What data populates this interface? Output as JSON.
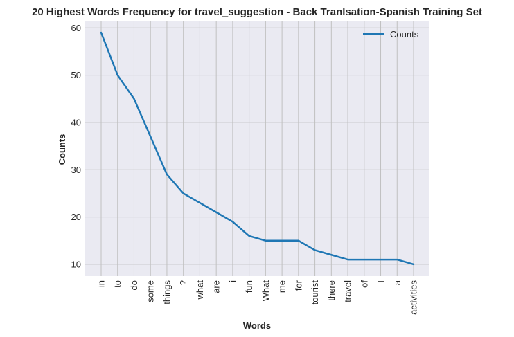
{
  "chart_data": {
    "type": "line",
    "title": "20 Highest Words Frequency for travel_suggestion - Back Tranlsation-Spanish Training Set",
    "xlabel": "Words",
    "ylabel": "Counts",
    "categories": [
      "in",
      "to",
      "do",
      "some",
      "things",
      "?",
      "what",
      "are",
      "i",
      "fun",
      "What",
      "me",
      "for",
      "tourist",
      "there",
      "travel",
      "of",
      "I",
      "a",
      "activities"
    ],
    "series": [
      {
        "name": "Counts",
        "values": [
          59,
          50,
          45,
          37,
          29,
          25,
          23,
          21,
          19,
          16,
          15,
          15,
          15,
          13,
          12,
          11,
          11,
          11,
          11,
          10
        ],
        "color": "#1f77b4"
      }
    ],
    "yticks": [
      10,
      20,
      30,
      40,
      50,
      60
    ],
    "ylim": [
      7.5,
      61.5
    ],
    "grid": true,
    "legend": "top-right",
    "background": "#eaeaf2",
    "grid_color": "#c0c0c0"
  }
}
